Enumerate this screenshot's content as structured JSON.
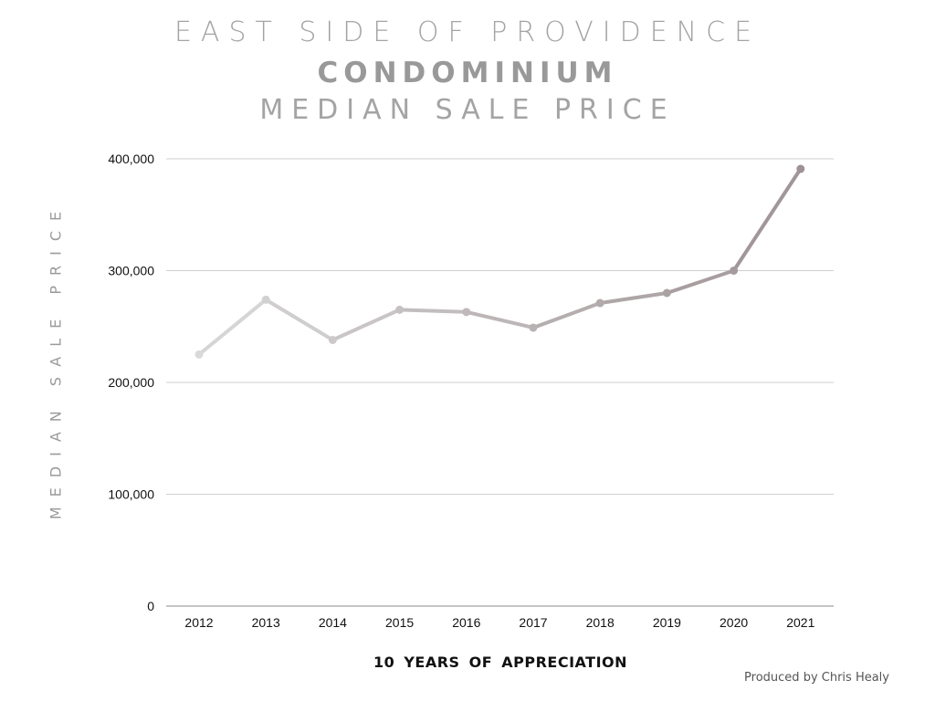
{
  "title": {
    "line1": "EAST SIDE OF PROVIDENCE",
    "line2": "CONDOMINIUM",
    "line3": "MEDIAN SALE PRICE"
  },
  "credit": "Produced by Chris Healy",
  "chart_data": {
    "type": "line",
    "title": "EAST SIDE OF PROVIDENCE CONDOMINIUM MEDIAN SALE PRICE",
    "xlabel": "10 YEARS OF APPRECIATION",
    "ylabel": "MEDIAN SALE PRICE",
    "ylim": [
      0,
      400000
    ],
    "yticks": [
      0,
      100000,
      200000,
      300000,
      400000
    ],
    "ytick_labels": [
      "0",
      "100,000",
      "200,000",
      "300,000",
      "400,000"
    ],
    "grid": true,
    "categories": [
      "2012",
      "2013",
      "2014",
      "2015",
      "2016",
      "2017",
      "2018",
      "2019",
      "2020",
      "2021"
    ],
    "values": [
      225000,
      274000,
      238000,
      265000,
      263000,
      249000,
      271000,
      280000,
      300000,
      391000
    ],
    "color_start": "#d9d9d9",
    "color_end": "#9e9294"
  }
}
